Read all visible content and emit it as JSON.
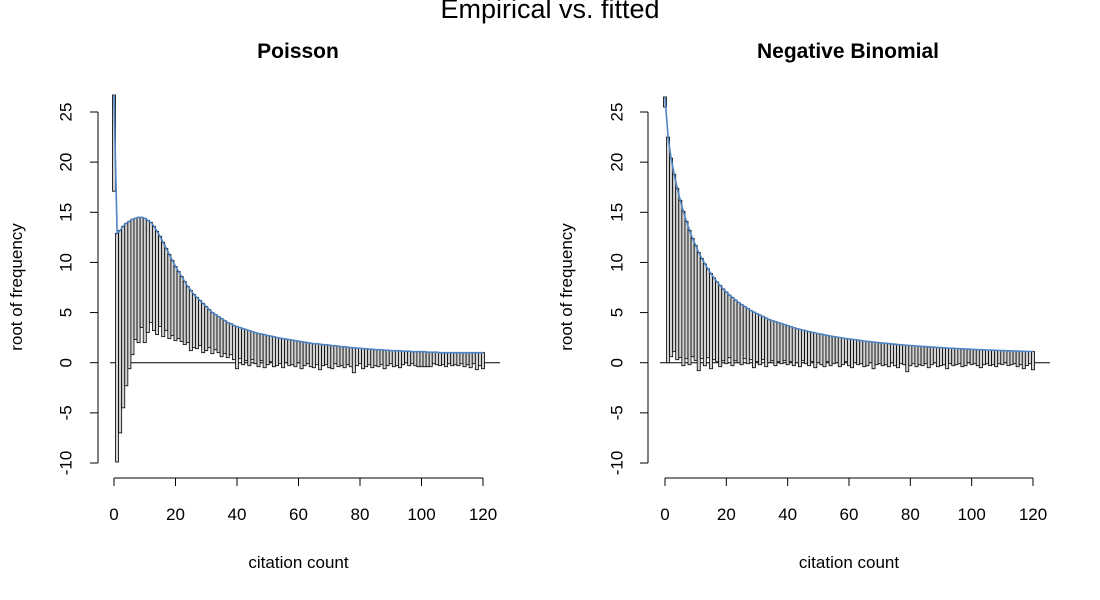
{
  "title": "Empirical vs. fitted",
  "colors": {
    "fitted_curve": "#4f86c6",
    "bar_fill": "#d3d3d3",
    "bar_edge": "#000000"
  },
  "chart_data": [
    {
      "type": "bar",
      "subtype": "hanging rootogram",
      "title": "Poisson",
      "xlabel": "citation count",
      "ylabel": "root of frequency",
      "xlim": [
        0,
        120
      ],
      "ylim": [
        -10,
        25
      ],
      "xticks": [
        0,
        20,
        40,
        60,
        80,
        100,
        120
      ],
      "yticks": [
        -10,
        -5,
        0,
        5,
        10,
        15,
        20,
        25
      ],
      "x": [
        0,
        1,
        2,
        3,
        4,
        5,
        6,
        7,
        8,
        9,
        10,
        11,
        12,
        13,
        14,
        15,
        16,
        17,
        18,
        19,
        20,
        21,
        22,
        23,
        24,
        25,
        26,
        27,
        28,
        29,
        30,
        31,
        32,
        33,
        34,
        35,
        36,
        37,
        38,
        39,
        40,
        41,
        42,
        43,
        44,
        45,
        46,
        47,
        48,
        49,
        50,
        51,
        52,
        53,
        54,
        55,
        56,
        57,
        58,
        59,
        60,
        61,
        62,
        63,
        64,
        65,
        66,
        67,
        68,
        69,
        70,
        71,
        72,
        73,
        74,
        75,
        76,
        77,
        78,
        79,
        80,
        81,
        82,
        83,
        84,
        85,
        86,
        87,
        88,
        89,
        90,
        91,
        92,
        93,
        94,
        95,
        96,
        97,
        98,
        99,
        100,
        101,
        102,
        103,
        104,
        105,
        106,
        107,
        108,
        109,
        110,
        111,
        112,
        113,
        114,
        115,
        116,
        117,
        118,
        119,
        120
      ],
      "series": [
        {
          "role": "expected",
          "values": [
            27.1,
            12.9,
            13.2,
            13.6,
            13.9,
            14.1,
            14.3,
            14.4,
            14.5,
            14.5,
            14.4,
            14.2,
            14.0,
            13.6,
            13.1,
            12.6,
            12.0,
            11.4,
            10.8,
            10.2,
            9.6,
            9.1,
            8.6,
            8.1,
            7.6,
            7.2,
            6.8,
            6.5,
            6.2,
            5.9,
            5.6,
            5.3,
            5.0,
            4.8,
            4.6,
            4.4,
            4.2,
            4.0,
            3.9,
            3.7,
            3.6,
            3.5,
            3.4,
            3.3,
            3.2,
            3.1,
            3.0,
            2.9,
            2.85,
            2.8,
            2.7,
            2.65,
            2.6,
            2.5,
            2.45,
            2.4,
            2.35,
            2.3,
            2.25,
            2.2,
            2.15,
            2.1,
            2.05,
            2.0,
            1.95,
            1.9,
            1.9,
            1.85,
            1.8,
            1.8,
            1.75,
            1.7,
            1.7,
            1.65,
            1.6,
            1.6,
            1.55,
            1.5,
            1.5,
            1.45,
            1.45,
            1.4,
            1.4,
            1.35,
            1.35,
            1.3,
            1.3,
            1.3,
            1.25,
            1.25,
            1.2,
            1.2,
            1.2,
            1.2,
            1.15,
            1.15,
            1.15,
            1.1,
            1.1,
            1.1,
            1.1,
            1.1,
            1.05,
            1.05,
            1.05,
            1.05,
            1.0,
            1.0,
            1.0,
            1.0,
            1.0,
            1.0,
            1.0,
            1.0,
            1.0,
            1.0,
            1.0,
            1.0,
            1.0,
            1.0,
            1.0
          ]
        },
        {
          "role": "bar_bottom",
          "values": [
            17.1,
            -9.9,
            -7.0,
            -4.5,
            -2.3,
            -0.6,
            0.8,
            2.3,
            2.0,
            3.5,
            2.0,
            3.0,
            4.0,
            3.2,
            2.8,
            3.6,
            2.6,
            3.2,
            2.4,
            2.7,
            2.2,
            2.4,
            2.1,
            1.8,
            2.0,
            1.2,
            1.5,
            1.4,
            1.7,
            1.0,
            1.2,
            1.5,
            0.9,
            1.3,
            1.0,
            0.6,
            0.9,
            0.5,
            0.8,
            0.3,
            -0.6,
            0.4,
            -0.2,
            0.2,
            -0.3,
            0.3,
            -0.1,
            -0.4,
            0.2,
            -0.5,
            -0.2,
            0.1,
            -0.4,
            -0.3,
            -0.1,
            -0.5,
            0.0,
            -0.3,
            -0.2,
            -0.4,
            0.0,
            -0.6,
            -0.3,
            -0.1,
            -0.4,
            -0.5,
            -0.2,
            -0.7,
            -0.3,
            -0.2,
            -0.5,
            -0.6,
            -0.1,
            -0.4,
            -0.3,
            -0.5,
            -0.2,
            -0.4,
            -1.0,
            -0.3,
            -0.1,
            -0.6,
            -0.4,
            -0.2,
            -0.5,
            -0.3,
            -0.4,
            -0.2,
            -0.6,
            -0.3,
            -0.1,
            -0.4,
            -0.3,
            -0.5,
            -0.2,
            0.0,
            -0.3,
            -0.1,
            -0.3,
            -0.4,
            -0.4,
            -0.4,
            -0.4,
            -0.4,
            -0.1,
            -0.2,
            -0.3,
            -0.2,
            -0.4,
            -0.1,
            -0.3,
            -0.2,
            -0.3,
            -0.1,
            -0.4,
            -0.2,
            -0.5,
            -0.1,
            -0.7,
            -0.3,
            -0.6
          ]
        }
      ]
    },
    {
      "type": "bar",
      "subtype": "hanging rootogram",
      "title": "Negative Binomial",
      "xlabel": "citation count",
      "ylabel": "root of frequency",
      "xlim": [
        0,
        120
      ],
      "ylim": [
        -10,
        25
      ],
      "xticks": [
        0,
        20,
        40,
        60,
        80,
        100,
        120
      ],
      "yticks": [
        -10,
        -5,
        0,
        5,
        10,
        15,
        20,
        25
      ],
      "x": [
        0,
        1,
        2,
        3,
        4,
        5,
        6,
        7,
        8,
        9,
        10,
        11,
        12,
        13,
        14,
        15,
        16,
        17,
        18,
        19,
        20,
        21,
        22,
        23,
        24,
        25,
        26,
        27,
        28,
        29,
        30,
        31,
        32,
        33,
        34,
        35,
        36,
        37,
        38,
        39,
        40,
        41,
        42,
        43,
        44,
        45,
        46,
        47,
        48,
        49,
        50,
        51,
        52,
        53,
        54,
        55,
        56,
        57,
        58,
        59,
        60,
        61,
        62,
        63,
        64,
        65,
        66,
        67,
        68,
        69,
        70,
        71,
        72,
        73,
        74,
        75,
        76,
        77,
        78,
        79,
        80,
        81,
        82,
        83,
        84,
        85,
        86,
        87,
        88,
        89,
        90,
        91,
        92,
        93,
        94,
        95,
        96,
        97,
        98,
        99,
        100,
        101,
        102,
        103,
        104,
        105,
        106,
        107,
        108,
        109,
        110,
        111,
        112,
        113,
        114,
        115,
        116,
        117,
        118,
        119,
        120
      ],
      "series": [
        {
          "role": "expected",
          "values": [
            26.5,
            22.5,
            20.4,
            18.8,
            17.4,
            16.2,
            15.1,
            14.1,
            13.2,
            12.4,
            11.7,
            11.0,
            10.4,
            9.85,
            9.35,
            8.9,
            8.45,
            8.05,
            7.7,
            7.35,
            7.05,
            6.75,
            6.5,
            6.25,
            6.0,
            5.8,
            5.6,
            5.4,
            5.2,
            5.05,
            4.9,
            4.75,
            4.6,
            4.45,
            4.3,
            4.2,
            4.1,
            4.0,
            3.9,
            3.8,
            3.7,
            3.6,
            3.5,
            3.4,
            3.33,
            3.25,
            3.18,
            3.1,
            3.03,
            2.97,
            2.9,
            2.84,
            2.78,
            2.72,
            2.66,
            2.61,
            2.56,
            2.51,
            2.46,
            2.41,
            2.37,
            2.33,
            2.29,
            2.25,
            2.21,
            2.17,
            2.13,
            2.1,
            2.06,
            2.03,
            2.0,
            1.97,
            1.94,
            1.91,
            1.88,
            1.85,
            1.82,
            1.79,
            1.77,
            1.74,
            1.72,
            1.7,
            1.67,
            1.65,
            1.63,
            1.61,
            1.59,
            1.57,
            1.55,
            1.53,
            1.51,
            1.49,
            1.47,
            1.45,
            1.44,
            1.42,
            1.4,
            1.39,
            1.37,
            1.36,
            1.34,
            1.33,
            1.31,
            1.3,
            1.29,
            1.27,
            1.26,
            1.25,
            1.24,
            1.22,
            1.21,
            1.2,
            1.19,
            1.18,
            1.17,
            1.16,
            1.15,
            1.14,
            1.13,
            1.12,
            1.11
          ]
        },
        {
          "role": "bar_bottom",
          "values": [
            25.5,
            0.0,
            0.6,
            1.1,
            0.3,
            0.5,
            -0.3,
            0.4,
            -0.2,
            0.6,
            0.2,
            -0.8,
            0.4,
            -0.3,
            0.5,
            -0.6,
            0.3,
            0.1,
            -0.4,
            0.2,
            -0.1,
            0.5,
            -0.3,
            0.2,
            0.0,
            -0.2,
            0.4,
            -0.1,
            0.3,
            -0.5,
            0.1,
            -0.2,
            0.3,
            -0.4,
            0.0,
            0.2,
            -0.3,
            0.1,
            -0.1,
            0.2,
            -0.2,
            0.1,
            -0.3,
            0.0,
            -0.4,
            0.2,
            -0.1,
            -0.3,
            0.1,
            -0.5,
            0.0,
            -0.2,
            -0.4,
            0.1,
            -0.3,
            -0.1,
            0.0,
            -0.4,
            -0.2,
            0.1,
            -0.3,
            -0.5,
            0.0,
            -0.2,
            -0.1,
            -0.4,
            -0.3,
            0.0,
            -0.6,
            -0.2,
            -0.1,
            -0.3,
            -0.2,
            -0.4,
            0.0,
            -0.3,
            -0.5,
            -0.1,
            -0.2,
            -0.9,
            -0.3,
            -0.1,
            -0.4,
            -0.2,
            -0.3,
            -0.1,
            -0.5,
            -0.2,
            0.0,
            -0.4,
            -0.3,
            -0.2,
            -0.6,
            -0.1,
            -0.3,
            -0.2,
            -0.1,
            -0.4,
            -0.3,
            0.0,
            -0.2,
            -0.1,
            -0.3,
            -0.5,
            -0.2,
            -0.1,
            -0.3,
            -0.2,
            -0.4,
            -0.1,
            -0.2,
            0.0,
            -0.3,
            -0.2,
            -0.1,
            -0.4,
            -0.2,
            -0.6,
            -0.3,
            -0.1,
            -0.7
          ]
        }
      ]
    }
  ]
}
